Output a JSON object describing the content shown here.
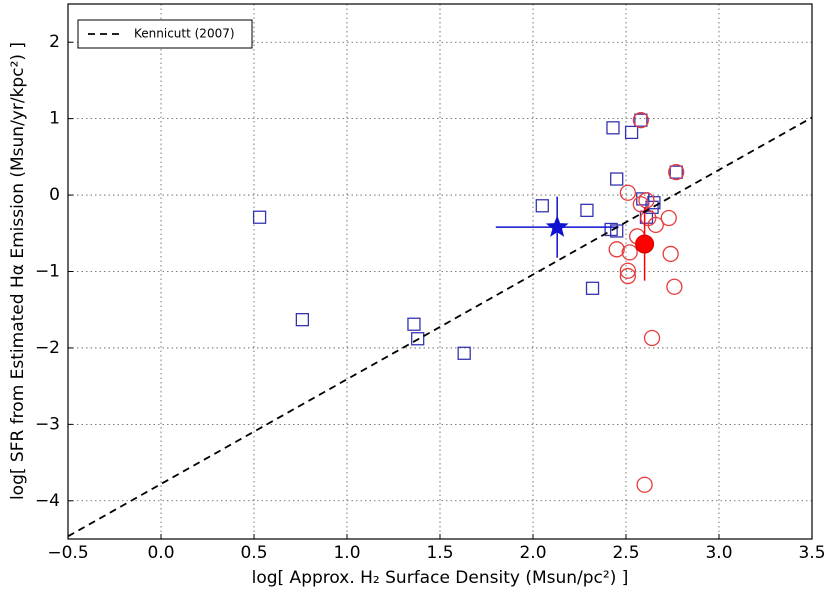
{
  "chart_data": {
    "type": "scatter",
    "xlabel": "log[ Approx. H₂ Surface Density (Msun/pc²) ]",
    "ylabel": "log[ SFR from Estimated Hα Emission (Msun/yr/kpc²) ]",
    "xlim": [
      -0.5,
      3.5
    ],
    "ylim": [
      -4.5,
      2.5
    ],
    "xticks": [
      {
        "value": -0.5,
        "label": "−0.5"
      },
      {
        "value": 0,
        "label": "0.0"
      },
      {
        "value": 0.5,
        "label": "0.5"
      },
      {
        "value": 1,
        "label": "1.0"
      },
      {
        "value": 1.5,
        "label": "1.5"
      },
      {
        "value": 2,
        "label": "2.0"
      },
      {
        "value": 2.5,
        "label": "2.5"
      },
      {
        "value": 3,
        "label": "3.0"
      },
      {
        "value": 3.5,
        "label": "3.5"
      }
    ],
    "yticks": [
      {
        "value": -4,
        "label": "−4"
      },
      {
        "value": -3,
        "label": "−3"
      },
      {
        "value": -2,
        "label": "−2"
      },
      {
        "value": -1,
        "label": "−1"
      },
      0,
      1,
      2
    ],
    "grid": true,
    "legend": "upper left",
    "series": [
      {
        "marker": "square",
        "color": "#3434b0",
        "x": [
          0.53,
          0.76,
          1.36,
          1.38,
          1.63,
          2.05,
          2.29,
          2.32,
          2.43,
          2.45,
          2.45,
          2.42,
          2.53,
          2.58,
          2.59,
          2.61,
          2.64,
          2.65,
          2.77
        ],
        "y": [
          -0.29,
          -1.63,
          -1.69,
          -1.88,
          -2.07,
          -0.14,
          -0.2,
          -1.22,
          0.88,
          0.21,
          -0.47,
          -0.45,
          0.82,
          0.98,
          -0.05,
          -0.29,
          -0.16,
          -0.1,
          0.3
        ]
      },
      {
        "marker": "circle",
        "color": "#e83a3a",
        "x": [
          2.58,
          2.51,
          2.58,
          2.62,
          2.66,
          2.73,
          2.56,
          2.45,
          2.52,
          2.74,
          2.51,
          2.51,
          2.76,
          2.64,
          2.6,
          2.77,
          2.61
        ],
        "y": [
          0.98,
          0.03,
          -0.12,
          -0.3,
          -0.39,
          -0.3,
          -0.54,
          -0.71,
          -0.75,
          -0.77,
          -0.99,
          -1.06,
          -1.2,
          -1.87,
          -3.79,
          0.3,
          -0.07
        ]
      },
      {
        "marker": "star",
        "color": "#1010d0",
        "x": [
          2.13
        ],
        "y": [
          -0.42
        ],
        "xerr": [
          0.33
        ],
        "yerr": [
          0.4
        ]
      },
      {
        "marker": "circle-filled",
        "color": "#ff0000",
        "x": [
          2.6
        ],
        "y": [
          -0.64
        ],
        "yerr": [
          0.48
        ]
      },
      {
        "name": "Kennicutt (2007)",
        "marker": "dashed-line",
        "color": "#000000",
        "x": [
          -0.5,
          3.5
        ],
        "y": [
          -4.465,
          1.015
        ]
      }
    ]
  }
}
